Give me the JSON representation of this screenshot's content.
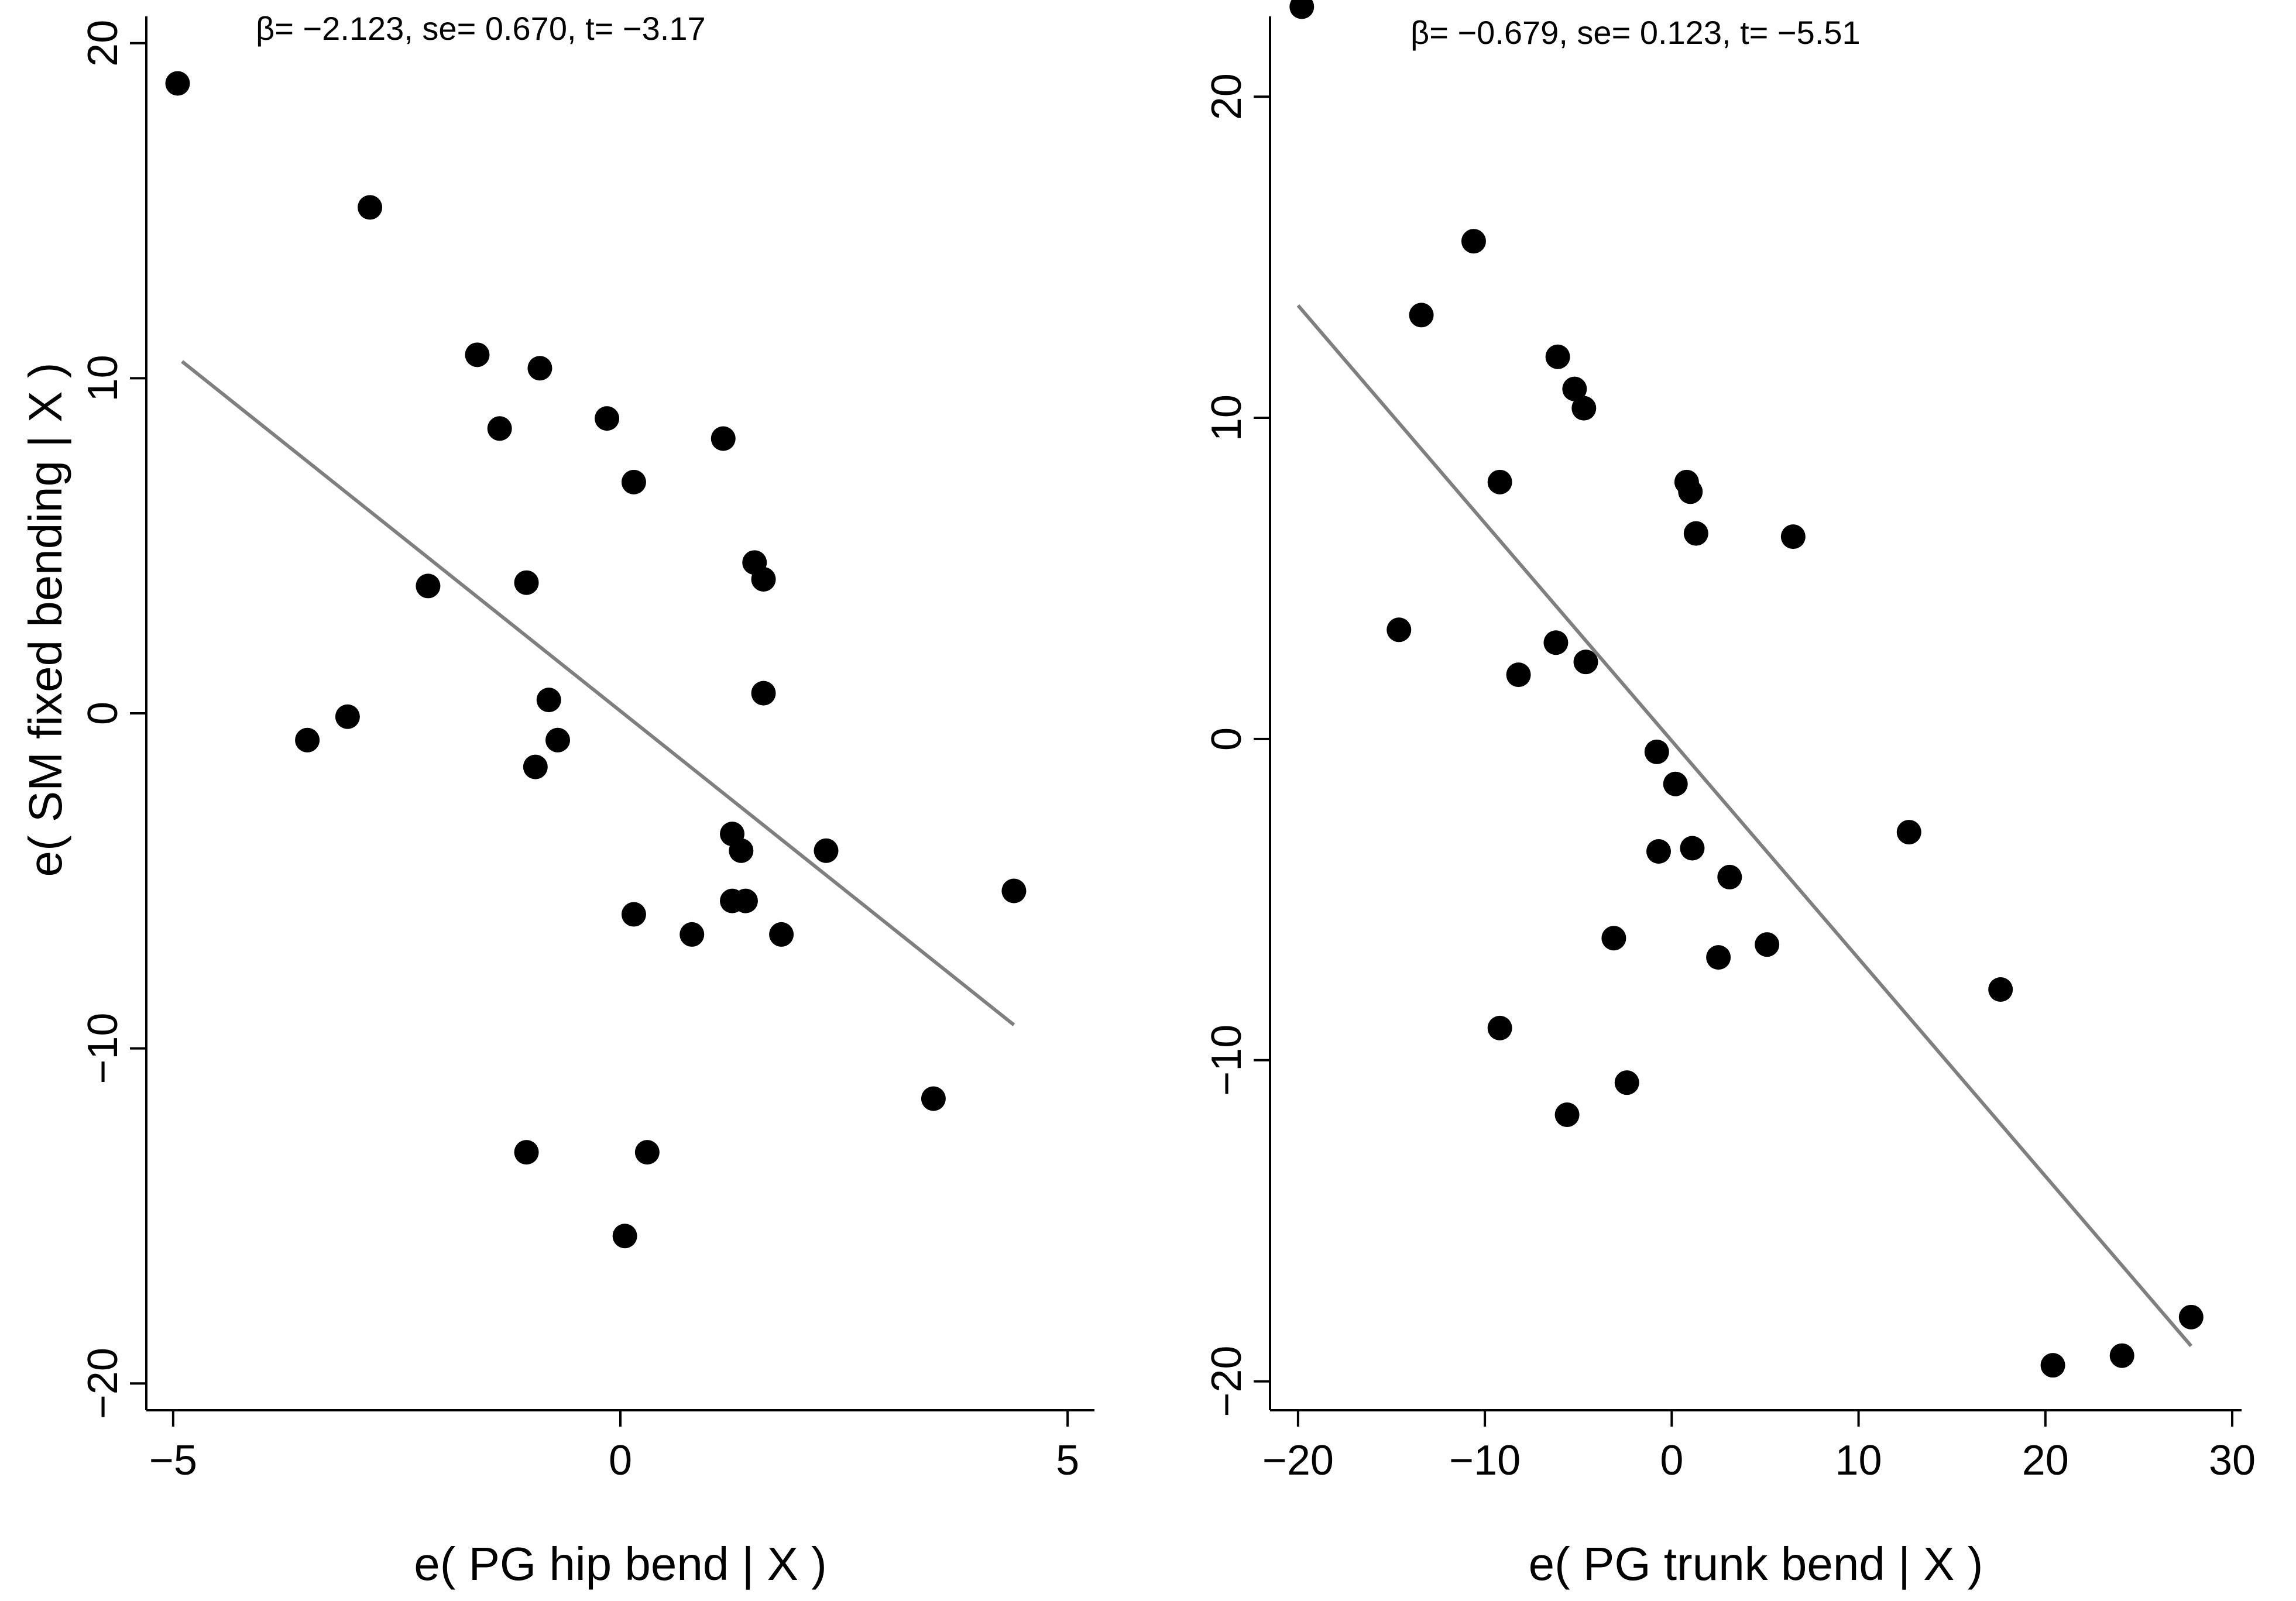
{
  "chart_data": [
    {
      "type": "scatter",
      "annotation": "β= −2.123, se= 0.670, t= −3.17",
      "xlabel": "e( PG hip bend | X )",
      "ylabel": "e( SM fixed bending | X )",
      "xlim": [
        -5.3,
        5.3
      ],
      "ylim": [
        -20.8,
        20.8
      ],
      "xticks": [
        -5,
        0,
        5
      ],
      "yticks": [
        -20,
        -10,
        0,
        10,
        20
      ],
      "xtick_labels": [
        "−5",
        "0",
        "5"
      ],
      "ytick_labels": [
        "−20",
        "−10",
        "0",
        "10",
        "20"
      ],
      "fit_line": {
        "x": [
          -4.9,
          4.4
        ],
        "y": [
          10.5,
          -9.3
        ]
      },
      "points": [
        {
          "x": -4.95,
          "y": 18.8
        },
        {
          "x": -2.8,
          "y": 15.1
        },
        {
          "x": -1.6,
          "y": 10.7
        },
        {
          "x": -0.9,
          "y": 10.3
        },
        {
          "x": -1.35,
          "y": 8.5
        },
        {
          "x": -0.15,
          "y": 8.8
        },
        {
          "x": 1.15,
          "y": 8.2
        },
        {
          "x": 0.15,
          "y": 6.9
        },
        {
          "x": 1.5,
          "y": 4.5
        },
        {
          "x": 1.6,
          "y": 4.0
        },
        {
          "x": -2.15,
          "y": 3.8
        },
        {
          "x": -1.05,
          "y": 3.9
        },
        {
          "x": 1.6,
          "y": 0.6
        },
        {
          "x": -0.8,
          "y": 0.4
        },
        {
          "x": -3.5,
          "y": -0.8
        },
        {
          "x": -3.05,
          "y": -0.1
        },
        {
          "x": -0.7,
          "y": -0.8
        },
        {
          "x": -0.95,
          "y": -1.6
        },
        {
          "x": 1.25,
          "y": -3.6
        },
        {
          "x": 1.35,
          "y": -4.1
        },
        {
          "x": 2.3,
          "y": -4.1
        },
        {
          "x": 4.4,
          "y": -5.3
        },
        {
          "x": 1.25,
          "y": -5.6
        },
        {
          "x": 1.4,
          "y": -5.6
        },
        {
          "x": 0.15,
          "y": -6.0
        },
        {
          "x": 0.8,
          "y": -6.6
        },
        {
          "x": 1.8,
          "y": -6.6
        },
        {
          "x": 3.5,
          "y": -11.5
        },
        {
          "x": -1.05,
          "y": -13.1
        },
        {
          "x": 0.3,
          "y": -13.1
        },
        {
          "x": 0.05,
          "y": -15.6
        }
      ]
    },
    {
      "type": "scatter",
      "annotation": "β= −0.679, se= 0.123, t= −5.51",
      "xlabel": "e( PG trunk bend | X )",
      "ylabel": "",
      "xlim": [
        -21.5,
        30.5
      ],
      "ylim": [
        -20.9,
        22.5
      ],
      "xticks": [
        -20,
        -10,
        0,
        10,
        20,
        30
      ],
      "yticks": [
        -20,
        -10,
        0,
        10,
        20
      ],
      "xtick_labels": [
        "−20",
        "−10",
        "0",
        "10",
        "20",
        "30"
      ],
      "ytick_labels": [
        "−20",
        "−10",
        "0",
        "10",
        "20"
      ],
      "fit_line": {
        "x": [
          -20,
          27.8
        ],
        "y": [
          13.5,
          -18.9
        ]
      },
      "points": [
        {
          "x": -19.8,
          "y": 22.8
        },
        {
          "x": -10.6,
          "y": 15.5
        },
        {
          "x": -13.4,
          "y": 13.2
        },
        {
          "x": -6.1,
          "y": 11.9
        },
        {
          "x": -5.2,
          "y": 10.9
        },
        {
          "x": -4.7,
          "y": 10.3
        },
        {
          "x": -9.2,
          "y": 8.0
        },
        {
          "x": 0.8,
          "y": 8.0
        },
        {
          "x": 1.0,
          "y": 7.7
        },
        {
          "x": 1.3,
          "y": 6.4
        },
        {
          "x": 6.5,
          "y": 6.3
        },
        {
          "x": -14.6,
          "y": 3.4
        },
        {
          "x": -6.2,
          "y": 3.0
        },
        {
          "x": -4.6,
          "y": 2.4
        },
        {
          "x": -8.2,
          "y": 2.0
        },
        {
          "x": -0.8,
          "y": -0.4
        },
        {
          "x": 0.2,
          "y": -1.4
        },
        {
          "x": 12.7,
          "y": -2.9
        },
        {
          "x": -0.7,
          "y": -3.5
        },
        {
          "x": 1.1,
          "y": -3.4
        },
        {
          "x": 3.1,
          "y": -4.3
        },
        {
          "x": -3.1,
          "y": -6.2
        },
        {
          "x": 2.5,
          "y": -6.8
        },
        {
          "x": 5.1,
          "y": -6.4
        },
        {
          "x": 17.6,
          "y": -7.8
        },
        {
          "x": -9.2,
          "y": -9.0
        },
        {
          "x": -2.4,
          "y": -10.7
        },
        {
          "x": -5.6,
          "y": -11.7
        },
        {
          "x": 27.8,
          "y": -18.0
        },
        {
          "x": 24.1,
          "y": -19.2
        },
        {
          "x": 20.4,
          "y": -19.5
        }
      ]
    }
  ]
}
